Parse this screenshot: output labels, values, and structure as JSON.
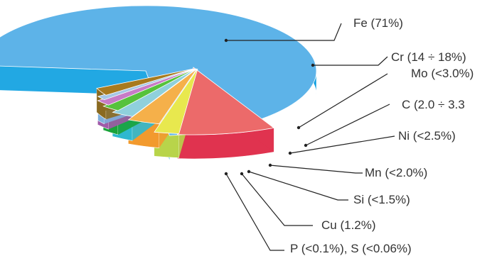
{
  "chart_data": {
    "type": "pie",
    "exploded": true,
    "three_d": true,
    "slices": [
      {
        "label": "Fe (71%)",
        "value": 71,
        "color": "#5db3e8",
        "side": "#0a9ee0"
      },
      {
        "label": "Cr (14 ÷ 18%)",
        "value": 14,
        "color": "#ec6a6a",
        "side": "#e0334f"
      },
      {
        "label": "Mo (<3.0%)",
        "value": 3.0,
        "color": "#e8e84e",
        "side": "#b8d44a"
      },
      {
        "label": "C (2.0 ÷ 3.3",
        "value": 2.8,
        "color": "#f5b04a",
        "side": "#f29a2e"
      },
      {
        "label": "Ni (<2.5%)",
        "value": 2.5,
        "color": "#8fd0dc",
        "side": "#2eb8d0"
      },
      {
        "label": "Mn (<2.0%)",
        "value": 2.0,
        "color": "#56c23c",
        "side": "#1aa33a"
      },
      {
        "label": "Si (<1.5%)",
        "value": 1.5,
        "color": "#c77bc7",
        "side": "#a05aa8"
      },
      {
        "label": "Cu (1.2%)",
        "value": 1.2,
        "color": "#a6c7e6",
        "side": "#7fb0dc"
      },
      {
        "label": "P (<0.1%), S (<0.06%)",
        "value": 1.0,
        "color": "#a87a1e",
        "side": "#8a6a20"
      }
    ]
  }
}
